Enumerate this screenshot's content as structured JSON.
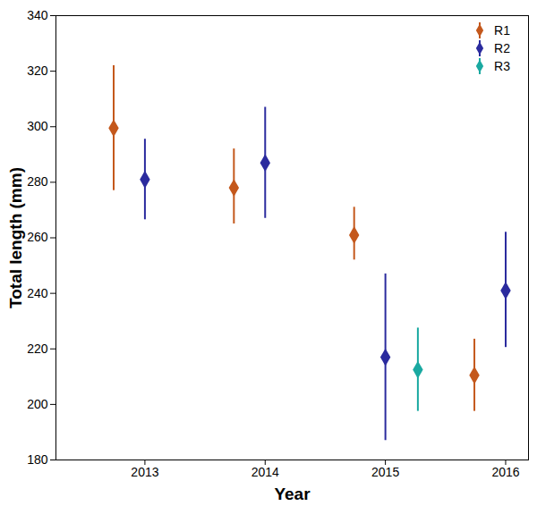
{
  "chart_data": {
    "type": "scatter",
    "x_label": "Year",
    "y_label": "Total length (mm)",
    "xlim": [
      2012.26,
      2016.19
    ],
    "xticks": [
      2013,
      2014,
      2015,
      2016
    ],
    "ylim": [
      180,
      340
    ],
    "yticks": [
      180,
      200,
      220,
      240,
      260,
      280,
      300,
      320,
      340
    ],
    "legend": "top-right",
    "marker": "diamond",
    "series": [
      {
        "name": "R1",
        "color": "#c4581c",
        "x": [
          2012.74,
          2013.74,
          2014.74,
          2015.74
        ],
        "values": [
          299.5,
          278,
          261,
          210.5
        ],
        "lower": [
          277,
          265,
          252,
          197.5
        ],
        "upper": [
          322,
          292,
          271,
          223.5
        ]
      },
      {
        "name": "R2",
        "color": "#2b2b9e",
        "x": [
          2013,
          2014,
          2015,
          2016
        ],
        "values": [
          281,
          287,
          217,
          241
        ],
        "lower": [
          266.5,
          267,
          187,
          220.5
        ],
        "upper": [
          295.5,
          307,
          247,
          262
        ]
      },
      {
        "name": "R3",
        "color": "#1aa9a1",
        "x": [
          2015.27
        ],
        "values": [
          212.5
        ],
        "lower": [
          197.5
        ],
        "upper": [
          227.5
        ]
      }
    ]
  }
}
